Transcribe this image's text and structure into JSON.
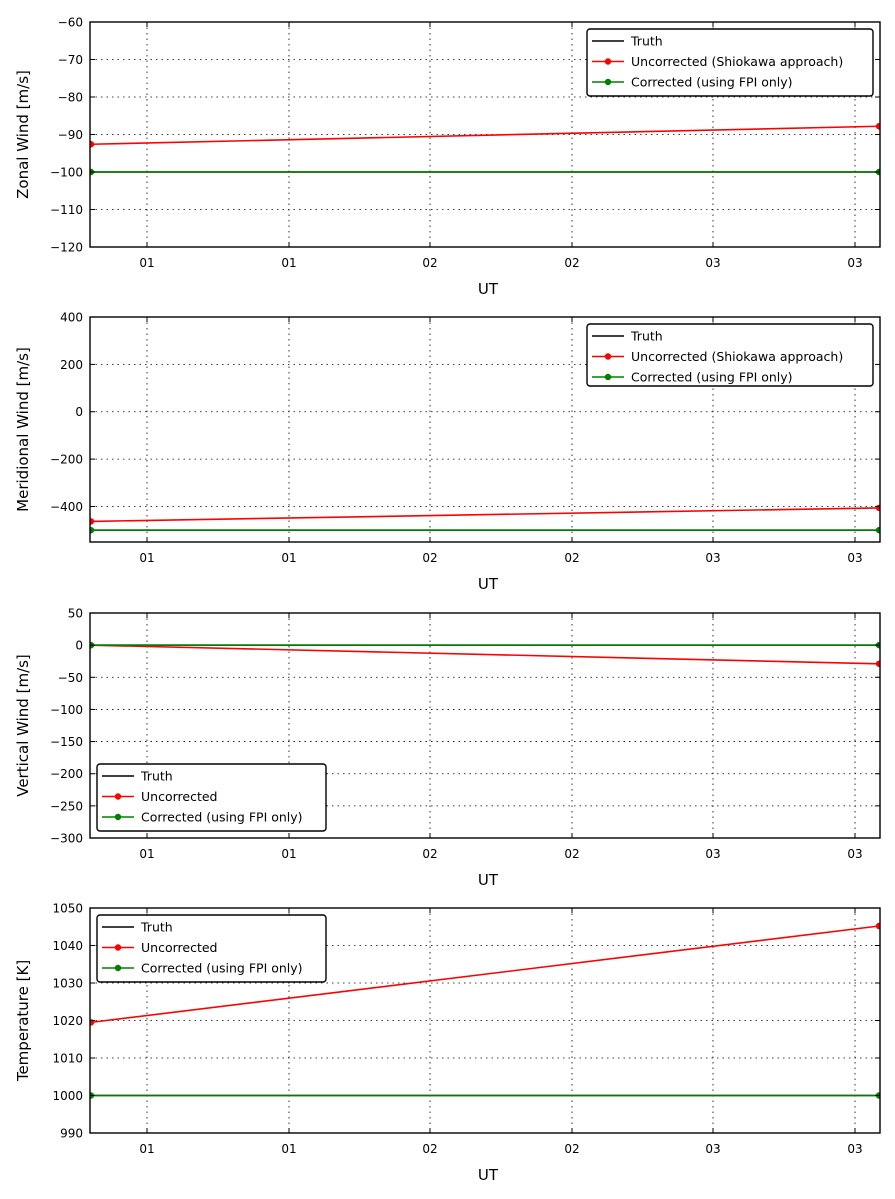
{
  "chart_data": [
    {
      "type": "line",
      "ylabel": "Zonal Wind [m/s]",
      "xlabel": "UT",
      "x_tick_labels": [
        "01",
        "01",
        "02",
        "02",
        "03",
        "03"
      ],
      "ylim": [
        -120,
        -60
      ],
      "yticks": [
        -120,
        -110,
        -100,
        -90,
        -80,
        -70,
        -60
      ],
      "grid": true,
      "legend_position": "upper right",
      "x": [
        0,
        1
      ],
      "series": [
        {
          "name": "Truth",
          "color": "#000000",
          "markers": false,
          "values": [
            -100,
            -100
          ]
        },
        {
          "name": "Uncorrected (Shiokawa approach)",
          "color": "#ff0000",
          "markers": true,
          "values": [
            -92.6,
            -87.8
          ]
        },
        {
          "name": "Corrected (using FPI only)",
          "color": "#008000",
          "markers": true,
          "values": [
            -100,
            -100
          ]
        }
      ]
    },
    {
      "type": "line",
      "ylabel": "Meridional Wind [m/s]",
      "xlabel": "UT",
      "x_tick_labels": [
        "01",
        "01",
        "02",
        "02",
        "03",
        "03"
      ],
      "ylim": [
        -550,
        400
      ],
      "yticks": [
        -400,
        -200,
        0,
        200,
        400
      ],
      "grid": true,
      "legend_position": "upper right",
      "x": [
        0,
        1
      ],
      "series": [
        {
          "name": "Truth",
          "color": "#000000",
          "markers": false,
          "values": [
            -500,
            -500
          ]
        },
        {
          "name": "Uncorrected (Shiokawa approach)",
          "color": "#ff0000",
          "markers": true,
          "values": [
            -463,
            -406
          ]
        },
        {
          "name": "Corrected (using FPI only)",
          "color": "#008000",
          "markers": true,
          "values": [
            -500,
            -500
          ]
        }
      ]
    },
    {
      "type": "line",
      "ylabel": "Vertical Wind [m/s]",
      "xlabel": "UT",
      "x_tick_labels": [
        "01",
        "01",
        "02",
        "02",
        "03",
        "03"
      ],
      "ylim": [
        -300,
        50
      ],
      "yticks": [
        -300,
        -250,
        -200,
        -150,
        -100,
        -50,
        0,
        50
      ],
      "grid": true,
      "legend_position": "lower left",
      "x": [
        0,
        1
      ],
      "series": [
        {
          "name": "Truth",
          "color": "#000000",
          "markers": false,
          "values": [
            0,
            0
          ]
        },
        {
          "name": "Uncorrected",
          "color": "#ff0000",
          "markers": true,
          "values": [
            0,
            -29
          ]
        },
        {
          "name": "Corrected (using FPI only)",
          "color": "#008000",
          "markers": true,
          "values": [
            0,
            0
          ]
        }
      ]
    },
    {
      "type": "line",
      "ylabel": "Temperature [K]",
      "xlabel": "UT",
      "x_tick_labels": [
        "01",
        "01",
        "02",
        "02",
        "03",
        "03"
      ],
      "ylim": [
        990,
        1050
      ],
      "yticks": [
        990,
        1000,
        1010,
        1020,
        1030,
        1040,
        1050
      ],
      "grid": true,
      "legend_position": "upper left",
      "x": [
        0,
        1
      ],
      "series": [
        {
          "name": "Truth",
          "color": "#000000",
          "markers": false,
          "values": [
            1000,
            1000
          ]
        },
        {
          "name": "Uncorrected",
          "color": "#ff0000",
          "markers": true,
          "values": [
            1019.5,
            1045.2
          ]
        },
        {
          "name": "Corrected (using FPI only)",
          "color": "#008000",
          "markers": true,
          "values": [
            1000,
            1000
          ]
        }
      ]
    }
  ]
}
